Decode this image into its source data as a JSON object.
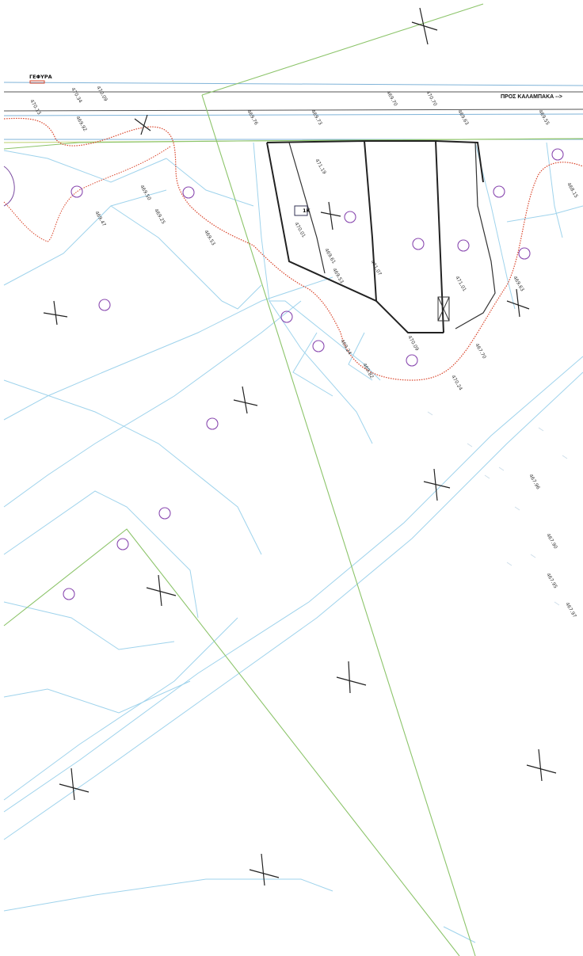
{
  "map": {
    "bridge_label": "ΓΕΦΥΡΑ",
    "road_label": "ΠΡΟΣ ΚΑΛΑΜΠΑΚΑ -->",
    "colors": {
      "background": "#ffffff",
      "cadastral_lines": "#9fd3ec",
      "boundary_green": "#8cc46a",
      "river_red": "#d9442a",
      "plot_outline": "#222222",
      "parcel_circle": "#8a4ab0"
    },
    "elevations": {
      "e1": "470.13",
      "e2": "470.34",
      "e3": "470.09",
      "e4": "469.92",
      "e5": "469.76",
      "e6": "469.73",
      "e7": "469.70",
      "e8": "470.70",
      "e9": "469.63",
      "e10": "469.55",
      "e11": "469.47",
      "e12": "469.50",
      "e13": "469.25",
      "e14": "469.53",
      "e15": "469.53",
      "e16": "470.01",
      "e17": "469.61",
      "e18": "469.63",
      "e19": "471.19",
      "e20": "471.07",
      "e21": "471.01",
      "e22": "469.24",
      "e23": "469.82",
      "e24": "470.09",
      "e25": "470.24",
      "e26": "467.70",
      "e27": "468.15",
      "e28": "467.96",
      "e29": "467.90",
      "e30": "467.95",
      "e31": "467.97"
    },
    "building_label": "1K"
  }
}
